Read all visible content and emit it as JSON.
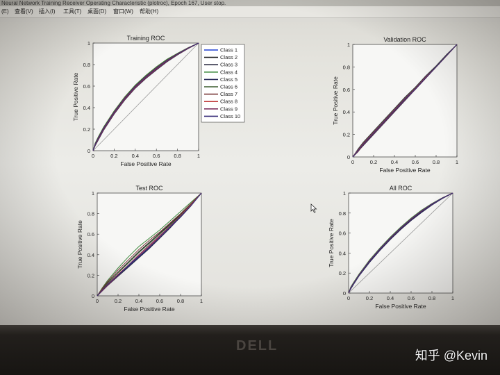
{
  "window": {
    "title": "Neural Network Training Receiver Operating Characteristic (plotroc), Epoch 167, User stop.",
    "menu": [
      "(E)",
      "查看(V)",
      "插入(I)",
      "工具(T)",
      "桌面(D)",
      "窗口(W)",
      "帮助(H)"
    ]
  },
  "watermark": "知乎 @Kevin",
  "brand": "DELL",
  "colors": {
    "screen_bg": "#e6e5e0",
    "plot_bg": "#f7f7f5",
    "diagonal": "#9a9a9a"
  },
  "legend": [
    "Class 1",
    "Class 2",
    "Class 3",
    "Class 4",
    "Class 5",
    "Class 6",
    "Class 7",
    "Class 8",
    "Class 9",
    "Class 10"
  ],
  "class_colors": [
    "#1f3fd1",
    "#1a1a1a",
    "#2e2e44",
    "#3d8a3d",
    "#2a2a5a",
    "#3b5d2e",
    "#7a3a3a",
    "#c03a3a",
    "#7a2f5e",
    "#3a2f7a"
  ],
  "chart_data": [
    {
      "type": "line",
      "title": "Training ROC",
      "xlabel": "False Positive Rate",
      "ylabel": "True Positive Rate",
      "xlim": [
        0,
        1
      ],
      "ylim": [
        0,
        1
      ],
      "xticks": [
        "0",
        "0.2",
        "0.4",
        "0.6",
        "0.8",
        "1"
      ],
      "yticks": [
        "0",
        "0.2",
        "0.4",
        "0.6",
        "0.8",
        "1"
      ],
      "legend_position": "outside-right",
      "x": [
        0,
        0.02,
        0.05,
        0.1,
        0.2,
        0.3,
        0.4,
        0.5,
        0.6,
        0.7,
        0.8,
        0.9,
        1.0
      ],
      "series": [
        {
          "name": "Class 1",
          "values": [
            0,
            0.06,
            0.12,
            0.21,
            0.36,
            0.49,
            0.6,
            0.69,
            0.77,
            0.84,
            0.9,
            0.955,
            1
          ]
        },
        {
          "name": "Class 2",
          "values": [
            0,
            0.05,
            0.11,
            0.2,
            0.35,
            0.48,
            0.59,
            0.68,
            0.76,
            0.83,
            0.895,
            0.95,
            1
          ]
        },
        {
          "name": "Class 3",
          "values": [
            0,
            0.055,
            0.115,
            0.205,
            0.355,
            0.485,
            0.595,
            0.685,
            0.765,
            0.835,
            0.9,
            0.952,
            1
          ]
        },
        {
          "name": "Class 4",
          "values": [
            0,
            0.07,
            0.13,
            0.22,
            0.37,
            0.5,
            0.61,
            0.7,
            0.78,
            0.85,
            0.905,
            0.957,
            1
          ]
        },
        {
          "name": "Class 5",
          "values": [
            0,
            0.045,
            0.1,
            0.19,
            0.34,
            0.47,
            0.58,
            0.67,
            0.75,
            0.825,
            0.89,
            0.948,
            1
          ]
        },
        {
          "name": "Class 6",
          "values": [
            0,
            0.065,
            0.125,
            0.215,
            0.365,
            0.495,
            0.605,
            0.695,
            0.775,
            0.845,
            0.903,
            0.956,
            1
          ]
        },
        {
          "name": "Class 7",
          "values": [
            0,
            0.05,
            0.105,
            0.195,
            0.345,
            0.475,
            0.585,
            0.675,
            0.755,
            0.83,
            0.893,
            0.949,
            1
          ]
        },
        {
          "name": "Class 8",
          "values": [
            0,
            0.06,
            0.12,
            0.21,
            0.36,
            0.49,
            0.6,
            0.69,
            0.77,
            0.84,
            0.9,
            0.954,
            1
          ]
        },
        {
          "name": "Class 9",
          "values": [
            0,
            0.055,
            0.11,
            0.2,
            0.35,
            0.48,
            0.59,
            0.68,
            0.76,
            0.835,
            0.897,
            0.951,
            1
          ]
        },
        {
          "name": "Class 10",
          "values": [
            0,
            0.058,
            0.118,
            0.208,
            0.358,
            0.488,
            0.598,
            0.688,
            0.768,
            0.838,
            0.899,
            0.953,
            1
          ]
        }
      ]
    },
    {
      "type": "line",
      "title": "Validation ROC",
      "xlabel": "False Positive Rate",
      "ylabel": "True Positive Rate",
      "xlim": [
        0,
        1
      ],
      "ylim": [
        0,
        1
      ],
      "xticks": [
        "0",
        "0.2",
        "0.4",
        "0.6",
        "0.8",
        "1"
      ],
      "yticks": [
        "0",
        "0.2",
        "0.4",
        "0.6",
        "0.8",
        "1"
      ],
      "x": [
        0,
        0.05,
        0.1,
        0.2,
        0.3,
        0.4,
        0.5,
        0.6,
        0.7,
        0.8,
        0.9,
        1.0
      ],
      "series": [
        {
          "name": "Class 1",
          "values": [
            0,
            0.06,
            0.12,
            0.22,
            0.32,
            0.42,
            0.52,
            0.61,
            0.71,
            0.8,
            0.9,
            1
          ]
        },
        {
          "name": "Class 2",
          "values": [
            0,
            0.05,
            0.11,
            0.21,
            0.31,
            0.41,
            0.51,
            0.6,
            0.7,
            0.8,
            0.9,
            1
          ]
        },
        {
          "name": "Class 3",
          "values": [
            0,
            0.07,
            0.13,
            0.23,
            0.33,
            0.43,
            0.53,
            0.62,
            0.72,
            0.81,
            0.91,
            1
          ]
        },
        {
          "name": "Class 4",
          "values": [
            0,
            0.055,
            0.115,
            0.215,
            0.315,
            0.415,
            0.515,
            0.605,
            0.705,
            0.8,
            0.9,
            1
          ]
        },
        {
          "name": "Class 5",
          "values": [
            0,
            0.05,
            0.1,
            0.2,
            0.3,
            0.4,
            0.5,
            0.6,
            0.7,
            0.8,
            0.9,
            1
          ]
        },
        {
          "name": "Class 6",
          "values": [
            0,
            0.065,
            0.125,
            0.225,
            0.325,
            0.425,
            0.525,
            0.615,
            0.712,
            0.805,
            0.905,
            1
          ]
        },
        {
          "name": "Class 7",
          "values": [
            0,
            0.045,
            0.105,
            0.205,
            0.305,
            0.405,
            0.505,
            0.6,
            0.7,
            0.798,
            0.898,
            1
          ]
        },
        {
          "name": "Class 8",
          "values": [
            0,
            0.06,
            0.12,
            0.22,
            0.32,
            0.42,
            0.52,
            0.61,
            0.71,
            0.8,
            0.9,
            1
          ]
        },
        {
          "name": "Class 9",
          "values": [
            0,
            0.058,
            0.118,
            0.218,
            0.318,
            0.418,
            0.518,
            0.608,
            0.708,
            0.802,
            0.902,
            1
          ]
        },
        {
          "name": "Class 10",
          "values": [
            0,
            0.052,
            0.112,
            0.212,
            0.312,
            0.412,
            0.512,
            0.602,
            0.702,
            0.8,
            0.9,
            1
          ]
        }
      ]
    },
    {
      "type": "line",
      "title": "Test ROC",
      "xlabel": "False Positive Rate",
      "ylabel": "True Positive Rate",
      "xlim": [
        0,
        1
      ],
      "ylim": [
        0,
        1
      ],
      "xticks": [
        "0",
        "0.2",
        "0.4",
        "0.6",
        "0.8",
        "1"
      ],
      "yticks": [
        "0",
        "0.2",
        "0.4",
        "0.6",
        "0.8",
        "1"
      ],
      "x": [
        0,
        0.05,
        0.1,
        0.2,
        0.3,
        0.4,
        0.5,
        0.6,
        0.7,
        0.8,
        0.9,
        1.0
      ],
      "series": [
        {
          "name": "Class 1",
          "values": [
            0,
            0.06,
            0.11,
            0.2,
            0.29,
            0.38,
            0.47,
            0.57,
            0.67,
            0.77,
            0.88,
            1
          ]
        },
        {
          "name": "Class 2",
          "values": [
            0,
            0.07,
            0.13,
            0.23,
            0.33,
            0.43,
            0.52,
            0.61,
            0.7,
            0.79,
            0.89,
            1
          ]
        },
        {
          "name": "Class 3",
          "values": [
            0,
            0.05,
            0.1,
            0.19,
            0.28,
            0.37,
            0.46,
            0.56,
            0.66,
            0.77,
            0.88,
            1
          ]
        },
        {
          "name": "Class 4",
          "values": [
            0,
            0.08,
            0.15,
            0.27,
            0.38,
            0.48,
            0.56,
            0.64,
            0.73,
            0.82,
            0.91,
            1
          ]
        },
        {
          "name": "Class 5",
          "values": [
            0,
            0.055,
            0.105,
            0.195,
            0.285,
            0.375,
            0.465,
            0.565,
            0.665,
            0.765,
            0.875,
            1
          ]
        },
        {
          "name": "Class 6",
          "values": [
            0,
            0.065,
            0.125,
            0.225,
            0.32,
            0.42,
            0.51,
            0.6,
            0.69,
            0.785,
            0.885,
            1
          ]
        },
        {
          "name": "Class 7",
          "values": [
            0,
            0.075,
            0.14,
            0.25,
            0.35,
            0.45,
            0.54,
            0.62,
            0.71,
            0.8,
            0.9,
            1
          ]
        },
        {
          "name": "Class 8",
          "values": [
            0,
            0.06,
            0.115,
            0.21,
            0.3,
            0.39,
            0.48,
            0.58,
            0.68,
            0.78,
            0.885,
            1
          ]
        },
        {
          "name": "Class 9",
          "values": [
            0,
            0.05,
            0.1,
            0.2,
            0.3,
            0.4,
            0.49,
            0.585,
            0.68,
            0.775,
            0.88,
            1
          ]
        },
        {
          "name": "Class 10",
          "values": [
            0,
            0.058,
            0.112,
            0.205,
            0.295,
            0.385,
            0.475,
            0.57,
            0.67,
            0.772,
            0.878,
            1
          ]
        }
      ]
    },
    {
      "type": "line",
      "title": "All ROC",
      "xlabel": "False Positive Rate",
      "ylabel": "True Positive Rate",
      "xlim": [
        0,
        1
      ],
      "ylim": [
        0,
        1
      ],
      "xticks": [
        "0",
        "0.2",
        "0.4",
        "0.6",
        "0.8",
        "1"
      ],
      "yticks": [
        "0",
        "0.2",
        "0.4",
        "0.6",
        "0.8",
        "1"
      ],
      "x": [
        0,
        0.02,
        0.05,
        0.1,
        0.2,
        0.3,
        0.4,
        0.5,
        0.6,
        0.7,
        0.8,
        0.9,
        1.0
      ],
      "series": [
        {
          "name": "Class 1",
          "values": [
            0,
            0.05,
            0.1,
            0.18,
            0.32,
            0.44,
            0.55,
            0.65,
            0.74,
            0.82,
            0.89,
            0.95,
            1
          ]
        },
        {
          "name": "Class 2",
          "values": [
            0,
            0.045,
            0.095,
            0.175,
            0.31,
            0.43,
            0.54,
            0.64,
            0.73,
            0.81,
            0.885,
            0.948,
            1
          ]
        },
        {
          "name": "Class 3",
          "values": [
            0,
            0.055,
            0.105,
            0.185,
            0.325,
            0.445,
            0.555,
            0.655,
            0.745,
            0.825,
            0.893,
            0.952,
            1
          ]
        },
        {
          "name": "Class 4",
          "values": [
            0,
            0.06,
            0.11,
            0.19,
            0.33,
            0.45,
            0.56,
            0.66,
            0.75,
            0.83,
            0.895,
            0.953,
            1
          ]
        },
        {
          "name": "Class 5",
          "values": [
            0,
            0.04,
            0.09,
            0.17,
            0.305,
            0.425,
            0.535,
            0.635,
            0.725,
            0.805,
            0.88,
            0.945,
            1
          ]
        },
        {
          "name": "Class 6",
          "values": [
            0,
            0.052,
            0.102,
            0.182,
            0.322,
            0.442,
            0.552,
            0.652,
            0.742,
            0.822,
            0.891,
            0.951,
            1
          ]
        },
        {
          "name": "Class 7",
          "values": [
            0,
            0.048,
            0.098,
            0.178,
            0.315,
            0.435,
            0.545,
            0.645,
            0.735,
            0.815,
            0.887,
            0.949,
            1
          ]
        },
        {
          "name": "Class 8",
          "values": [
            0,
            0.05,
            0.1,
            0.18,
            0.32,
            0.44,
            0.55,
            0.65,
            0.74,
            0.82,
            0.89,
            0.95,
            1
          ]
        },
        {
          "name": "Class 9",
          "values": [
            0,
            0.053,
            0.103,
            0.183,
            0.323,
            0.443,
            0.553,
            0.653,
            0.743,
            0.823,
            0.892,
            0.951,
            1
          ]
        },
        {
          "name": "Class 10",
          "values": [
            0,
            0.047,
            0.097,
            0.177,
            0.317,
            0.437,
            0.547,
            0.647,
            0.737,
            0.817,
            0.888,
            0.949,
            1
          ]
        }
      ]
    }
  ]
}
